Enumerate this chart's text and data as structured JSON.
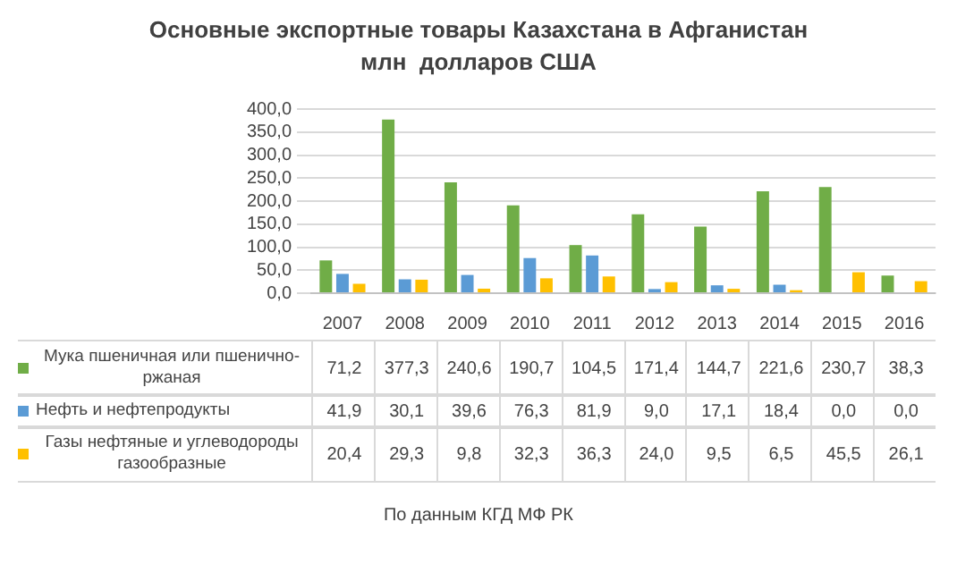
{
  "chart_data": {
    "type": "bar",
    "title": "Основные экспортные товары Казахстана в Афганистан",
    "subtitle": "млн  долларов США",
    "annotations": [
      "По данным КГД МФ РК"
    ],
    "categories": [
      "2007",
      "2008",
      "2009",
      "2010",
      "2011",
      "2012",
      "2013",
      "2014",
      "2015",
      "2016"
    ],
    "series": [
      {
        "name": "Мука пшеничная или пшенично-ржаная",
        "color": "#70ad47",
        "values": [
          71.2,
          377.3,
          240.6,
          190.7,
          104.5,
          171.4,
          144.7,
          221.6,
          230.7,
          38.3
        ],
        "value_labels": [
          "71,2",
          "377,3",
          "240,6",
          "190,7",
          "104,5",
          "171,4",
          "144,7",
          "221,6",
          "230,7",
          "38,3"
        ]
      },
      {
        "name": "Нефть и нефтепродукты",
        "color": "#5b9bd5",
        "values": [
          41.9,
          30.1,
          39.6,
          76.3,
          81.9,
          9.0,
          17.1,
          18.4,
          0.0,
          0.0
        ],
        "value_labels": [
          "41,9",
          "30,1",
          "39,6",
          "76,3",
          "81,9",
          "9,0",
          "17,1",
          "18,4",
          "0,0",
          "0,0"
        ]
      },
      {
        "name": "Газы нефтяные и углеводороды газообразные",
        "color": "#ffc000",
        "values": [
          20.4,
          29.3,
          9.8,
          32.3,
          36.3,
          24.0,
          9.5,
          6.5,
          45.5,
          26.1
        ],
        "value_labels": [
          "20,4",
          "29,3",
          "9,8",
          "32,3",
          "36,3",
          "24,0",
          "9,5",
          "6,5",
          "45,5",
          "26,1"
        ]
      }
    ],
    "ylim": [
      0,
      400
    ],
    "yticks": [
      {
        "value": 0,
        "label": "0,0"
      },
      {
        "value": 50,
        "label": "50,0"
      },
      {
        "value": 100,
        "label": "100,0"
      },
      {
        "value": 150,
        "label": "150,0"
      },
      {
        "value": 200,
        "label": "200,0"
      },
      {
        "value": 250,
        "label": "250,0"
      },
      {
        "value": 300,
        "label": "300,0"
      },
      {
        "value": 350,
        "label": "350,0"
      },
      {
        "value": 400,
        "label": "400,0"
      }
    ],
    "grid": "y",
    "legend": "bottom"
  }
}
